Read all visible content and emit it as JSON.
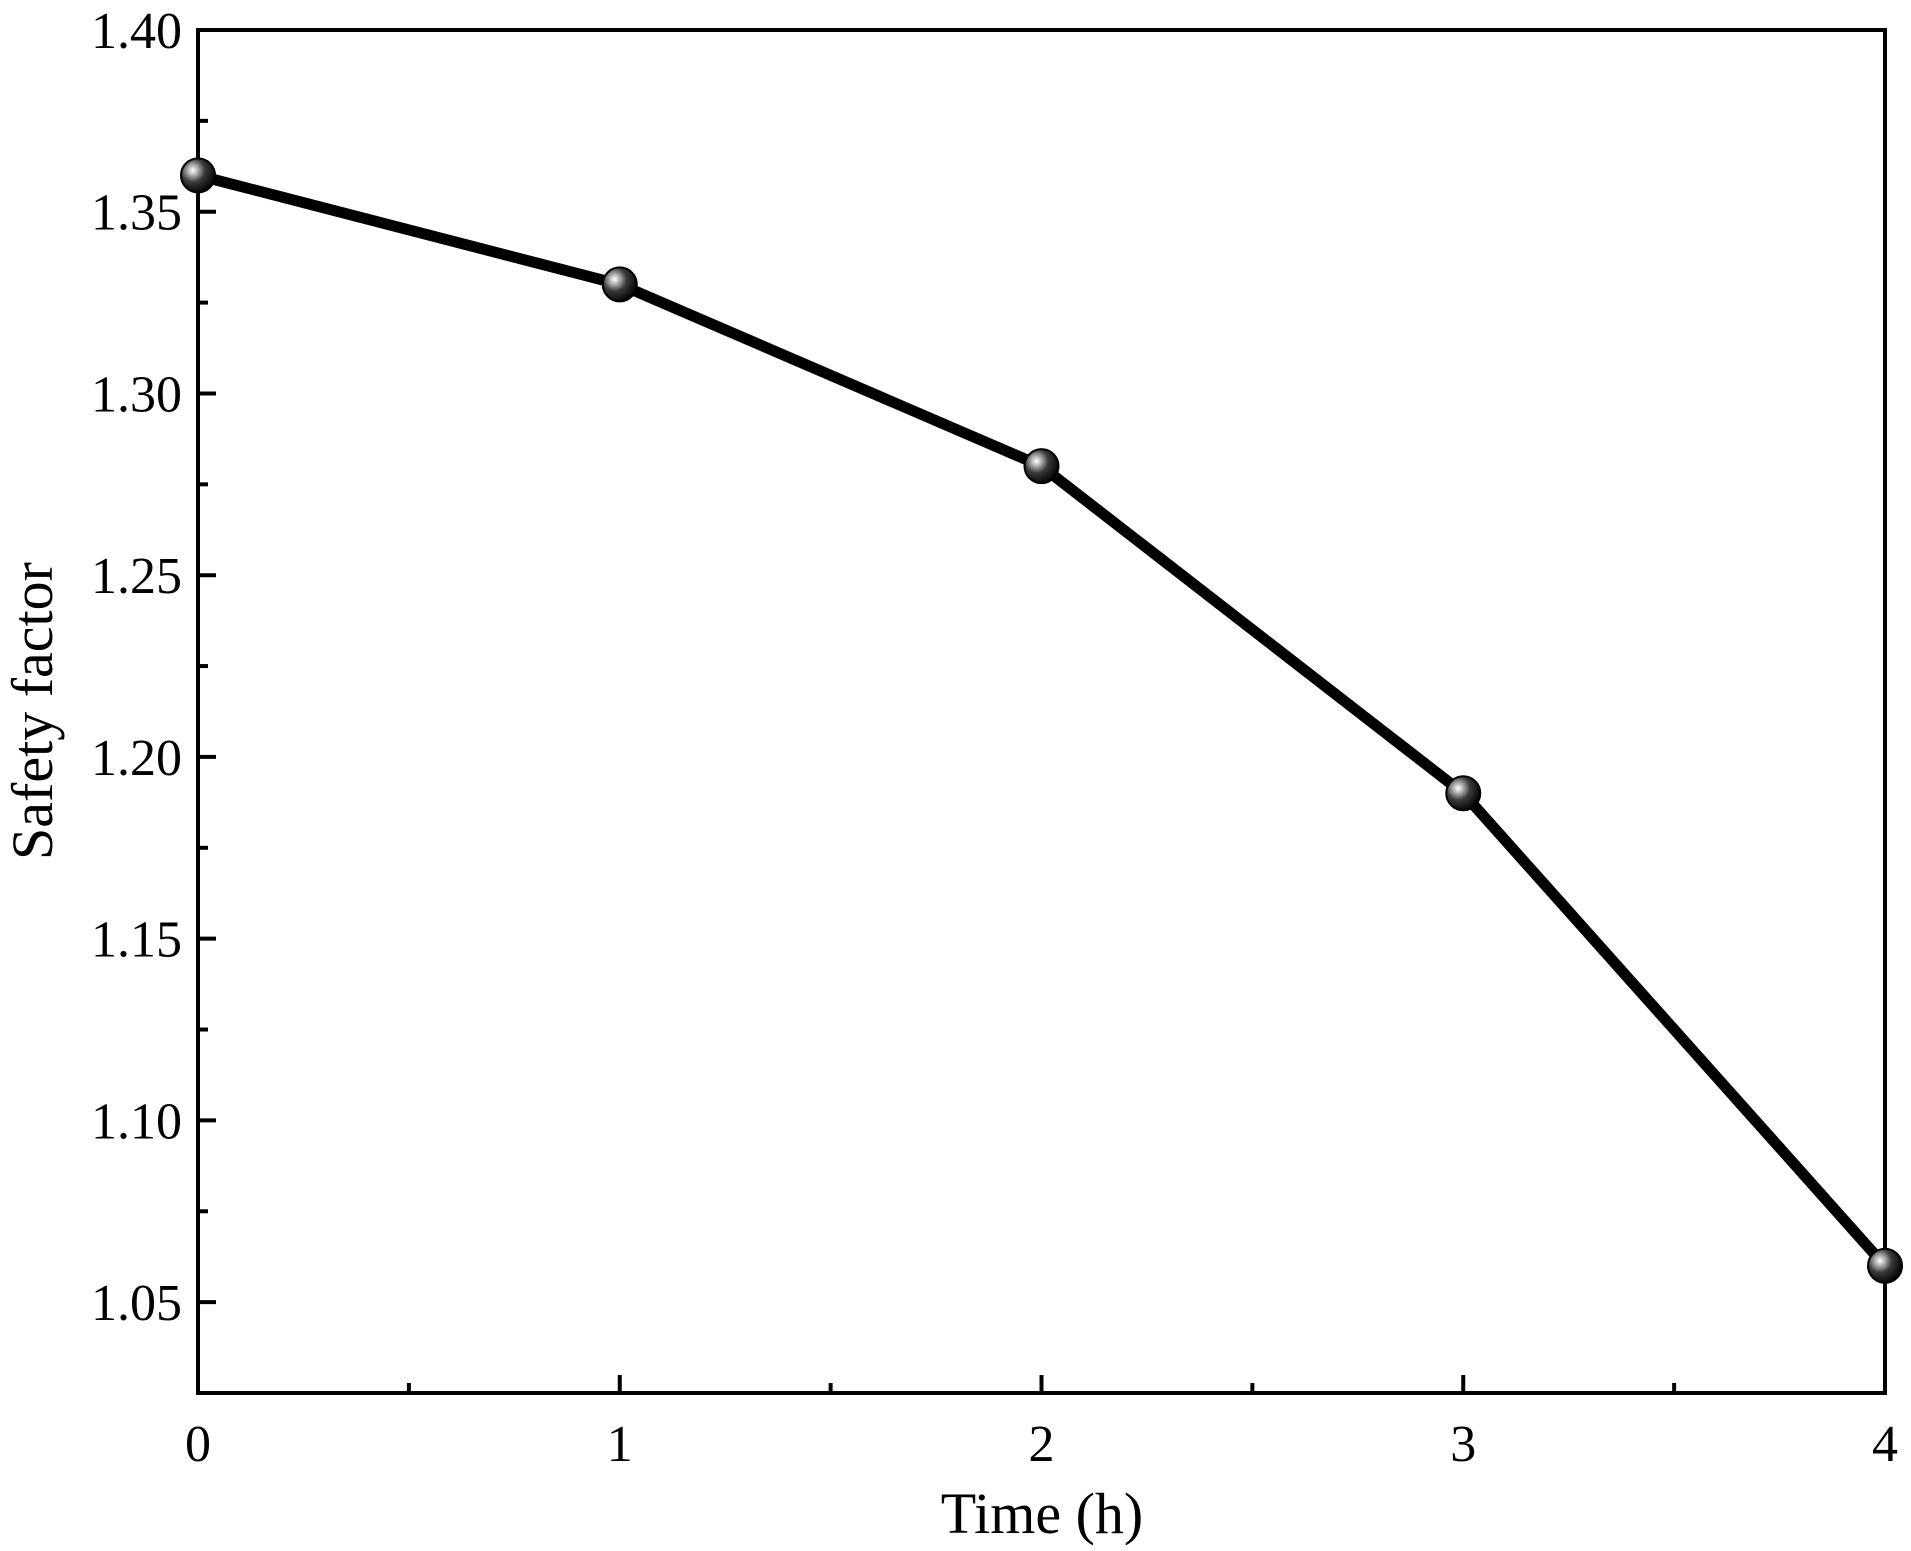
{
  "chart_data": {
    "type": "line",
    "title": "",
    "xlabel": "Time (h)",
    "ylabel": "Safety factor",
    "x": [
      0,
      1,
      2,
      3,
      4
    ],
    "series": [
      {
        "values": [
          1.36,
          1.33,
          1.28,
          1.19,
          1.06
        ]
      }
    ],
    "xlim": [
      0,
      4
    ],
    "ylim": [
      1.025,
      1.4
    ],
    "x_ticks": [
      0,
      1,
      2,
      3,
      4
    ],
    "x_tick_labels": [
      "0",
      "1",
      "2",
      "3",
      "4"
    ],
    "x_minor_ticks": [
      0.5,
      1.5,
      2.5,
      3.5
    ],
    "y_ticks": [
      1.05,
      1.1,
      1.15,
      1.2,
      1.25,
      1.3,
      1.35,
      1.4
    ],
    "y_tick_labels": [
      "1.05",
      "1.10",
      "1.15",
      "1.20",
      "1.25",
      "1.30",
      "1.35",
      "1.40"
    ],
    "y_minor_ticks": [
      1.075,
      1.125,
      1.175,
      1.225,
      1.275,
      1.325,
      1.375
    ],
    "grid": false,
    "line_color": "#000000",
    "marker": "sphere"
  }
}
